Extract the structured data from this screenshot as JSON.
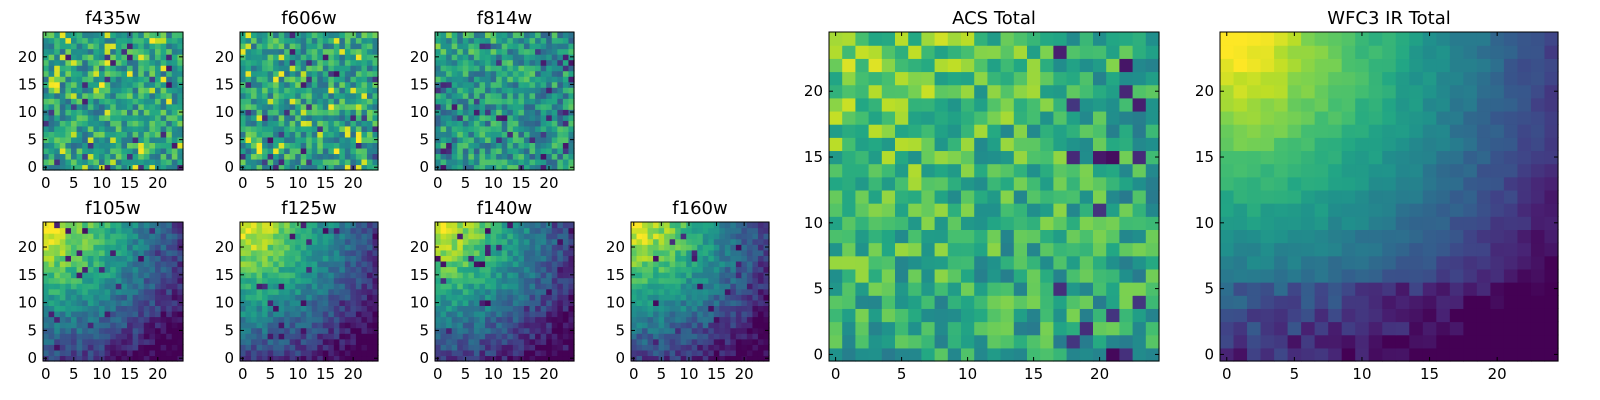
{
  "chart_data": [
    {
      "type": "heatmap",
      "title": "f435w",
      "grid_size": 25,
      "colormap": "viridis",
      "x_ticks": [
        "0",
        "5",
        "10",
        "15",
        "20"
      ],
      "y_ticks": [
        "0",
        "5",
        "10",
        "15",
        "20"
      ],
      "xlim": [
        -0.5,
        24.5
      ],
      "ylim": [
        -0.5,
        24.5
      ],
      "pattern": "noise",
      "seed": 11
    },
    {
      "type": "heatmap",
      "title": "f606w",
      "grid_size": 25,
      "colormap": "viridis",
      "x_ticks": [
        "0",
        "5",
        "10",
        "15",
        "20"
      ],
      "y_ticks": [
        "0",
        "5",
        "10",
        "15",
        "20"
      ],
      "xlim": [
        -0.5,
        24.5
      ],
      "ylim": [
        -0.5,
        24.5
      ],
      "pattern": "noise",
      "seed": 23
    },
    {
      "type": "heatmap",
      "title": "f814w",
      "grid_size": 25,
      "colormap": "viridis",
      "x_ticks": [
        "0",
        "5",
        "10",
        "15",
        "20"
      ],
      "y_ticks": [
        "0",
        "5",
        "10",
        "15",
        "20"
      ],
      "xlim": [
        -0.5,
        24.5
      ],
      "ylim": [
        -0.5,
        24.5
      ],
      "pattern": "noise_corner",
      "seed": 37
    },
    {
      "type": "heatmap",
      "title": "f105w",
      "grid_size": 25,
      "colormap": "viridis",
      "x_ticks": [
        "0",
        "5",
        "10",
        "15",
        "20"
      ],
      "y_ticks": [
        "0",
        "5",
        "10",
        "15",
        "20"
      ],
      "xlim": [
        -0.5,
        24.5
      ],
      "ylim": [
        -0.5,
        24.5
      ],
      "pattern": "gradient",
      "seed": 41
    },
    {
      "type": "heatmap",
      "title": "f125w",
      "grid_size": 25,
      "colormap": "viridis",
      "x_ticks": [
        "0",
        "5",
        "10",
        "15",
        "20"
      ],
      "y_ticks": [
        "0",
        "5",
        "10",
        "15",
        "20"
      ],
      "xlim": [
        -0.5,
        24.5
      ],
      "ylim": [
        -0.5,
        24.5
      ],
      "pattern": "gradient",
      "seed": 53
    },
    {
      "type": "heatmap",
      "title": "f140w",
      "grid_size": 25,
      "colormap": "viridis",
      "x_ticks": [
        "0",
        "5",
        "10",
        "15",
        "20"
      ],
      "y_ticks": [
        "0",
        "5",
        "10",
        "15",
        "20"
      ],
      "xlim": [
        -0.5,
        24.5
      ],
      "ylim": [
        -0.5,
        24.5
      ],
      "pattern": "gradient",
      "seed": 67
    },
    {
      "type": "heatmap",
      "title": "f160w",
      "grid_size": 25,
      "colormap": "viridis",
      "x_ticks": [
        "0",
        "5",
        "10",
        "15",
        "20"
      ],
      "y_ticks": [
        "0",
        "5",
        "10",
        "15",
        "20"
      ],
      "xlim": [
        -0.5,
        24.5
      ],
      "ylim": [
        -0.5,
        24.5
      ],
      "pattern": "gradient",
      "seed": 79
    },
    {
      "type": "heatmap",
      "title": "ACS Total",
      "grid_size": 25,
      "colormap": "viridis",
      "x_ticks": [
        "0",
        "5",
        "10",
        "15",
        "20"
      ],
      "y_ticks": [
        "0",
        "5",
        "10",
        "15",
        "20"
      ],
      "xlim": [
        -0.5,
        24.5
      ],
      "ylim": [
        -0.5,
        24.5
      ],
      "pattern": "noise_total",
      "seed": 97
    },
    {
      "type": "heatmap",
      "title": "WFC3 IR Total",
      "grid_size": 25,
      "colormap": "viridis",
      "x_ticks": [
        "0",
        "5",
        "10",
        "15",
        "20"
      ],
      "y_ticks": [
        "0",
        "5",
        "10",
        "15",
        "20"
      ],
      "xlim": [
        -0.5,
        24.5
      ],
      "ylim": [
        -0.5,
        24.5
      ],
      "pattern": "gradient_total",
      "seed": 113
    }
  ]
}
